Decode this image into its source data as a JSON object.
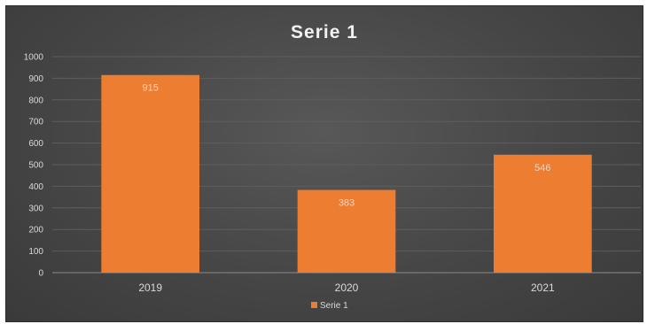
{
  "chart_data": {
    "type": "bar",
    "title": "Serie 1",
    "categories": [
      "2019",
      "2020",
      "2021"
    ],
    "series": [
      {
        "name": "Serie 1",
        "values": [
          915,
          383,
          546
        ],
        "color": "#ed7d31"
      }
    ],
    "ylim": [
      0,
      1000
    ],
    "yticks": [
      0,
      100,
      200,
      300,
      400,
      500,
      600,
      700,
      800,
      900,
      1000
    ],
    "grid": true,
    "legend": "bottom",
    "xlabel": "",
    "ylabel": ""
  }
}
